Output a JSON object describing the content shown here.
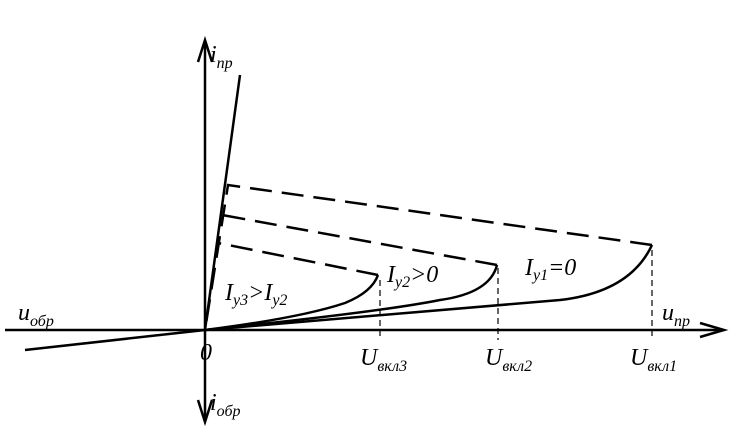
{
  "diagram": {
    "axes": {
      "y_up": {
        "main": "i",
        "sub": "пр"
      },
      "y_down": {
        "main": "i",
        "sub": "обр"
      },
      "x_left": {
        "main": "u",
        "sub": "обр"
      },
      "x_right": {
        "main": "u",
        "sub": "пр"
      },
      "origin": "0"
    },
    "voltages": [
      {
        "main": "U",
        "sub": "вкл3"
      },
      {
        "main": "U",
        "sub": "вкл2"
      },
      {
        "main": "U",
        "sub": "вкл1"
      }
    ],
    "curve_labels": [
      {
        "a": "I",
        "a_sub": "y3",
        "op": ">",
        "b": "I",
        "b_sub": "y2"
      },
      {
        "a": "I",
        "a_sub": "y2",
        "op": ">0"
      },
      {
        "a": "I",
        "a_sub": "y1",
        "op": "=0"
      }
    ]
  }
}
